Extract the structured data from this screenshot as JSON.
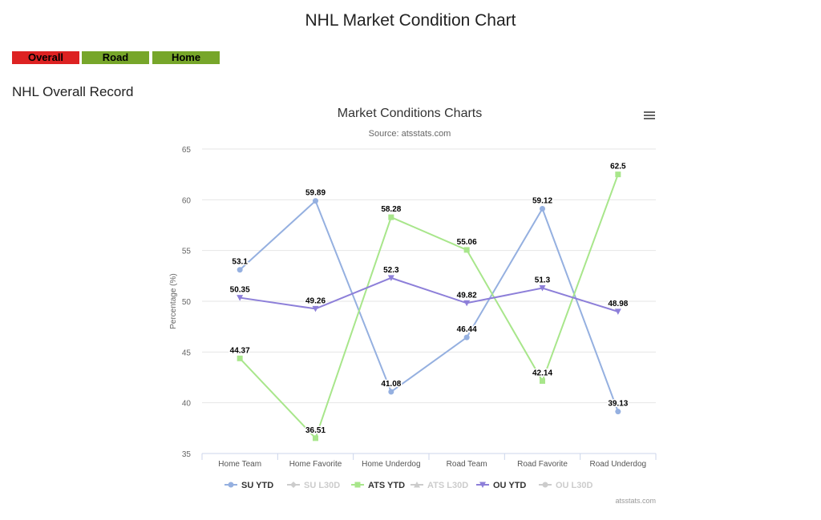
{
  "header": {
    "title": "NHL Market Condition Chart"
  },
  "tabs": [
    {
      "label": "Overall",
      "color": "#dd2222"
    },
    {
      "label": "Road",
      "color": "#77a62a"
    },
    {
      "label": "Home",
      "color": "#77a62a"
    }
  ],
  "section_title": "NHL Overall Record",
  "chart_data": {
    "type": "line",
    "title": "Market Conditions Charts",
    "subtitle": "Source: atsstats.com",
    "y_label": "Percentage (%)",
    "credits": "atsstats.com",
    "categories": [
      "Home Team",
      "Home Favorite",
      "Home Underdog",
      "Road Team",
      "Road Favorite",
      "Road Underdog"
    ],
    "series": [
      {
        "name": "SU YTD",
        "color": "#95b0e0",
        "marker": "circle",
        "visible": true,
        "values": [
          53.1,
          59.89,
          41.08,
          46.44,
          59.12,
          39.13
        ]
      },
      {
        "name": "SU L30D",
        "color": "#cccccc",
        "marker": "diamond",
        "visible": false,
        "values": [
          null,
          null,
          null,
          null,
          null,
          null
        ]
      },
      {
        "name": "ATS YTD",
        "color": "#a8e68b",
        "marker": "square",
        "visible": true,
        "values": [
          44.37,
          36.51,
          58.28,
          55.06,
          42.14,
          62.5
        ]
      },
      {
        "name": "ATS L30D",
        "color": "#cccccc",
        "marker": "triangle",
        "visible": false,
        "values": [
          null,
          null,
          null,
          null,
          null,
          null
        ]
      },
      {
        "name": "OU YTD",
        "color": "#8d7fd9",
        "marker": "triangle-down",
        "visible": true,
        "values": [
          50.35,
          49.26,
          52.3,
          49.82,
          51.3,
          48.98
        ]
      },
      {
        "name": "OU L30D",
        "color": "#cccccc",
        "marker": "circle",
        "visible": false,
        "values": [
          null,
          null,
          null,
          null,
          null,
          null
        ]
      }
    ],
    "ylim": [
      35,
      65
    ],
    "yticks": [
      35,
      40,
      45,
      50,
      55,
      60,
      65
    ],
    "grid": true
  }
}
